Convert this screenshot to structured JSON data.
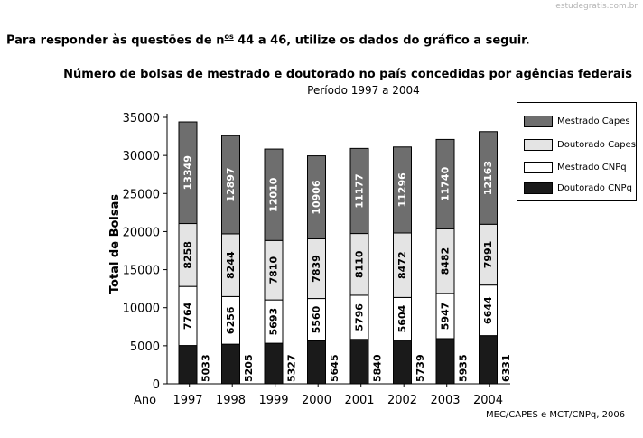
{
  "watermark": "estudegratis.com.br",
  "intro": {
    "before": "Para responder às questões de n",
    "sup": "os",
    "after": " 44 a 46, utilize os dados do gráfico a seguir."
  },
  "source": "MEC/CAPES e MCT/CNPq, 2006",
  "colors": {
    "mestrado_capes": "#6e6e6e",
    "doutorado_capes": "#e4e4e4",
    "mestrado_cnpq": "#ffffff",
    "doutorado_cnpq": "#1a1a1a"
  },
  "chart_data": {
    "type": "bar",
    "stacked": true,
    "title": "Número de bolsas de mestrado e doutorado no país concedidas  por agências federais",
    "subtitle": "Período 1997 a 2004",
    "xlabel": "Ano",
    "ylabel": "Total de Bolsas",
    "ylim": [
      0,
      35000
    ],
    "yticks": [
      0,
      5000,
      10000,
      15000,
      20000,
      25000,
      30000,
      35000
    ],
    "grid": false,
    "legend_position": "right",
    "categories": [
      "1997",
      "1998",
      "1999",
      "2000",
      "2001",
      "2002",
      "2003",
      "2004"
    ],
    "series": [
      {
        "name": "Doutorado CNPq",
        "color": "#1a1a1a",
        "values": [
          5033,
          5205,
          5327,
          5645,
          5840,
          5739,
          5935,
          6331
        ]
      },
      {
        "name": "Mestrado CNPq",
        "color": "#ffffff",
        "values": [
          7764,
          6256,
          5693,
          5560,
          5796,
          5604,
          5947,
          6644
        ]
      },
      {
        "name": "Doutorado Capes",
        "color": "#e4e4e4",
        "values": [
          8258,
          8244,
          7810,
          7839,
          8110,
          8472,
          8482,
          7991
        ]
      },
      {
        "name": "Mestrado Capes",
        "color": "#6e6e6e",
        "values": [
          13349,
          12897,
          12010,
          10906,
          11177,
          11296,
          11740,
          12163
        ]
      }
    ],
    "legend_order": [
      "Mestrado Capes",
      "Doutorado Capes",
      "Mestrado CNPq",
      "Doutorado CNPq"
    ]
  }
}
